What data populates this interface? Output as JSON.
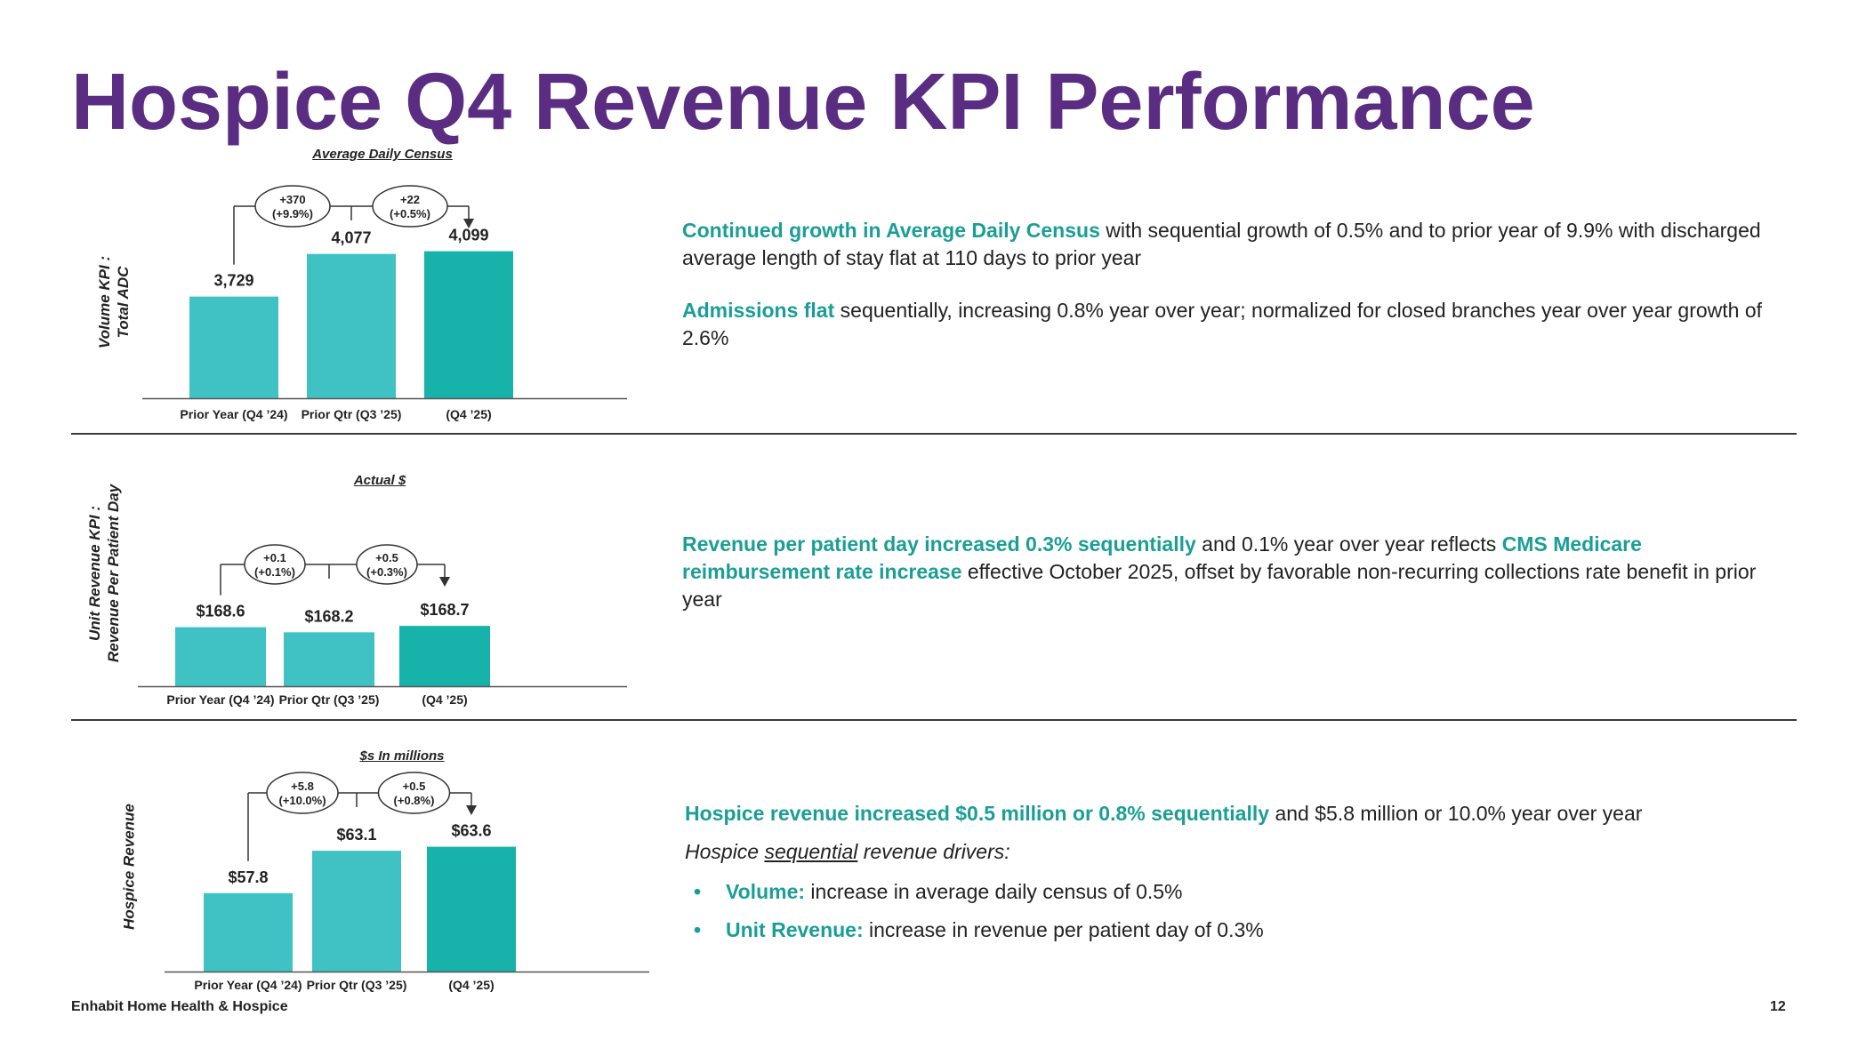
{
  "title": "Hospice Q4 Revenue KPI Performance",
  "colors": {
    "title": "#5a2d82",
    "bar_prior": "#40c2c4",
    "bar_current": "#17b2aa",
    "highlight": "#1a9e96"
  },
  "chart_data": [
    {
      "type": "bar",
      "title": "Average Daily Census",
      "ylabel": "Volume KPI : Total ADC",
      "categories": [
        "Prior Year (Q4 ’24)",
        "Prior Qtr (Q3 ’25)",
        "(Q4 ’25)"
      ],
      "values": [
        3729,
        4077,
        4099
      ],
      "value_labels": [
        "3,729",
        "4,077",
        "4,099"
      ],
      "ylim": [
        2900,
        4350
      ],
      "changes": [
        {
          "line1": "+370",
          "line2": "(+9.9%)"
        },
        {
          "line1": "+22",
          "line2": "(+0.5%)"
        }
      ]
    },
    {
      "type": "bar",
      "title": "Actual $",
      "ylabel": "Unit Revenue KPI : Revenue Per Patient Day",
      "categories": [
        "Prior Year (Q4 ’24)",
        "Prior Qtr (Q3 ’25)",
        "(Q4 ’25)"
      ],
      "values": [
        168.6,
        168.2,
        168.7
      ],
      "value_labels": [
        "$168.6",
        "$168.2",
        "$168.7"
      ],
      "ylim": [
        164,
        173
      ],
      "changes": [
        {
          "line1": "+0.1",
          "line2": "(+0.1%)"
        },
        {
          "line1": "+0.5",
          "line2": "(+0.3%)"
        }
      ]
    },
    {
      "type": "bar",
      "title": "$s In millions",
      "ylabel": "Hospice Revenue",
      "categories": [
        "Prior Year (Q4 ’24)",
        "Prior Qtr (Q3 ’25)",
        "(Q4 ’25)"
      ],
      "values": [
        57.8,
        63.1,
        63.6
      ],
      "value_labels": [
        "$57.8",
        "$63.1",
        "$63.6"
      ],
      "ylim": [
        48,
        68
      ],
      "changes": [
        {
          "line1": "+5.8",
          "line2": "(+10.0%)"
        },
        {
          "line1": "+0.5",
          "line2": "(+0.8%)"
        }
      ]
    }
  ],
  "sections": {
    "volume": {
      "label_line1": "Volume KPI :",
      "label_line2": "Total ADC",
      "p1_hl": "Continued growth in Average Daily Census",
      "p1_rest": " with sequential growth of 0.5% and to prior year of 9.9% with discharged average length of stay flat at 110 days to prior year",
      "p2_hl": "Admissions flat",
      "p2_rest": " sequentially, increasing 0.8% year over year; normalized for closed branches year over year growth of 2.6%"
    },
    "unit": {
      "label_line1": "Unit Revenue KPI :",
      "label_line2": "Revenue Per Patient Day",
      "p_hl1": "Revenue per patient day increased 0.3% sequentially",
      "p_mid": " and 0.1% year over year reflects ",
      "p_hl2": "CMS Medicare reimbursement rate increase",
      "p_rest": " effective October 2025, offset by favorable non-recurring collections rate benefit in prior year"
    },
    "revenue": {
      "label_line1": "Hospice Revenue",
      "p_hl": "Hospice revenue increased $0.5 million or 0.8% sequentially",
      "p_rest": " and $5.8 million or 10.0% year over year",
      "drivers_pre": "Hospice ",
      "drivers_ul": "sequential",
      "drivers_post": " revenue drivers:",
      "bullet_char": "•",
      "b1_label": "Volume:",
      "b1_text": " increase in average daily census of 0.5%",
      "b2_label": "Unit Revenue:",
      "b2_text": " increase in revenue per patient day of 0.3%"
    }
  },
  "footer": {
    "company": "Enhabit Home Health & Hospice",
    "page": "12"
  }
}
